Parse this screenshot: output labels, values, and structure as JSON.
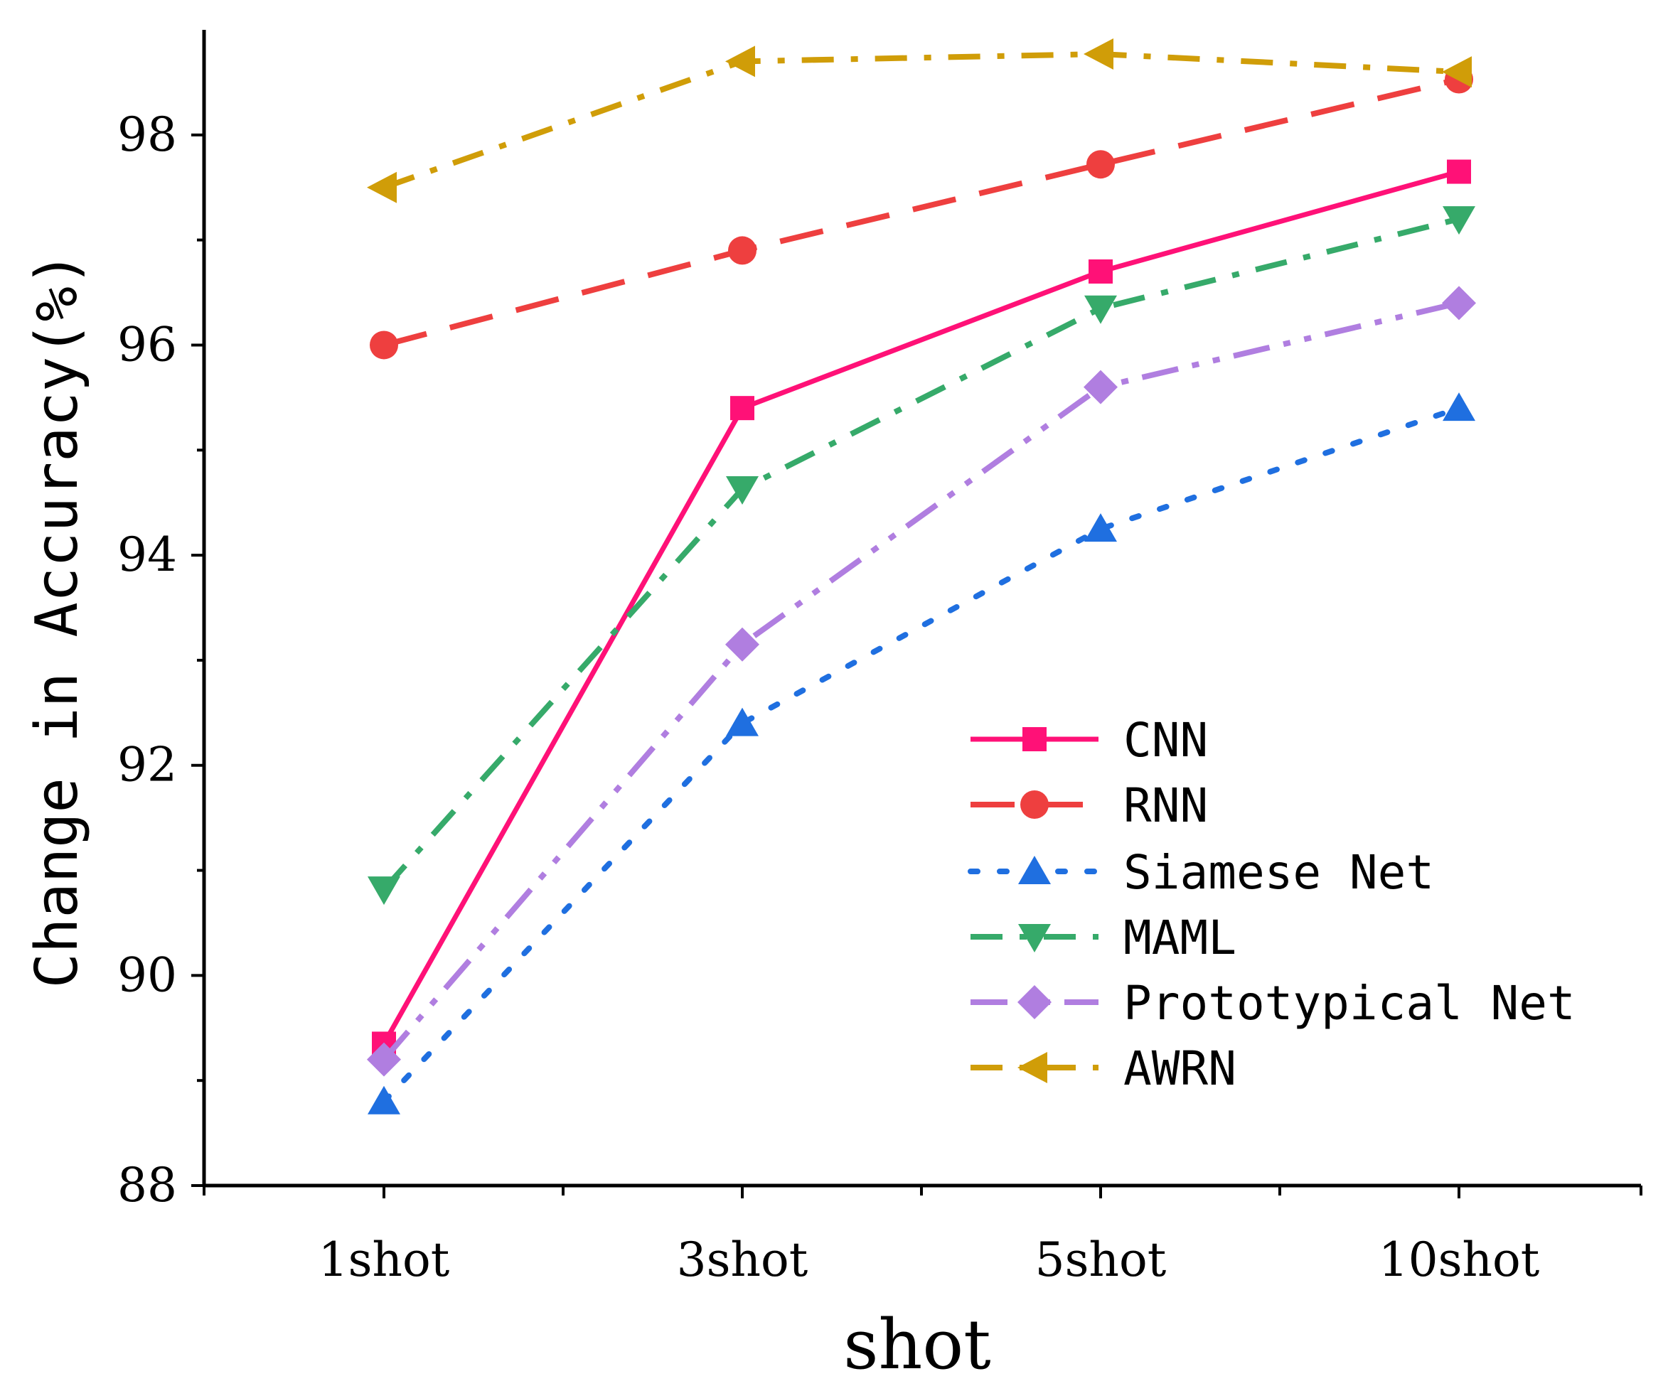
{
  "chart_data": {
    "type": "line",
    "categories": [
      "1shot",
      "3shot",
      "5shot",
      "10shot"
    ],
    "xlabel": "shot",
    "ylabel": "Change in Accuracy(%)",
    "ylim": [
      88,
      99
    ],
    "yticks": [
      88,
      90,
      92,
      94,
      96,
      98
    ],
    "grid": false,
    "legend_position": "lower-right",
    "series": [
      {
        "name": "CNN",
        "values": [
          89.35,
          95.4,
          96.7,
          97.65
        ],
        "color": "#ff1177",
        "marker": "square",
        "line_style": "solid"
      },
      {
        "name": "RNN",
        "values": [
          96.0,
          96.9,
          97.72,
          98.53
        ],
        "color": "#ee3f3f",
        "marker": "circle",
        "line_style": "dash"
      },
      {
        "name": "Siamese Net",
        "values": [
          88.8,
          92.4,
          94.25,
          95.4
        ],
        "color": "#1f6fe0",
        "marker": "triangle-up",
        "line_style": "dot"
      },
      {
        "name": "MAML",
        "values": [
          90.82,
          94.63,
          96.35,
          97.2
        ],
        "color": "#36aa6a",
        "marker": "triangle-down",
        "line_style": "dash-dot"
      },
      {
        "name": "Prototypical Net",
        "values": [
          89.2,
          93.15,
          95.6,
          96.4
        ],
        "color": "#b07ee0",
        "marker": "diamond",
        "line_style": "dash-dot-dot"
      },
      {
        "name": "AWRN",
        "values": [
          97.5,
          98.7,
          98.77,
          98.6
        ],
        "color": "#d09d08",
        "marker": "triangle-left",
        "line_style": "dash-dot"
      }
    ]
  }
}
